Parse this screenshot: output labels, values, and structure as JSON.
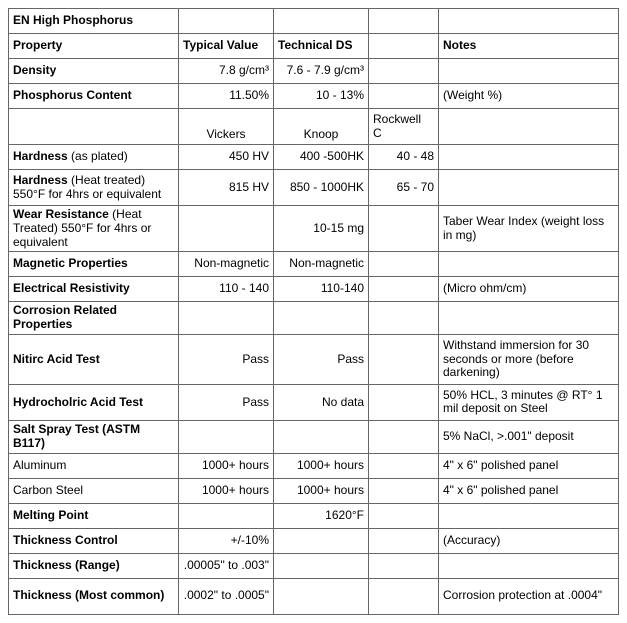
{
  "title": "EN High Phosphorus",
  "headers": {
    "property": "Property",
    "typical": "Typical Value",
    "technical": "Technical DS",
    "notes": "Notes"
  },
  "rows": {
    "density": {
      "label": "Density",
      "typ": "7.8 g/cm³",
      "tech": "7.6 - 7.9 g/cm³",
      "col4": "",
      "notes": ""
    },
    "phosphorus": {
      "label": "Phosphorus Content",
      "typ": "11.50%",
      "tech": "10 - 13%",
      "col4": "",
      "notes": "(Weight %)"
    },
    "hardness_header": {
      "label": "",
      "c2": "Vickers",
      "c3": "Knoop",
      "c4a": "Rockwell",
      "c4b": "C",
      "notes": ""
    },
    "hardness_plated": {
      "label_b": "Hardness",
      "label_rest": " (as plated)",
      "typ": "450 HV",
      "tech": "400 -500HK",
      "col4": "40 - 48",
      "notes": ""
    },
    "hardness_ht": {
      "label_b": "Hardness",
      "label_rest": " (Heat treated)  550°F for 4hrs or equivalent",
      "typ": "815 HV",
      "tech": "850 - 1000HK",
      "col4": "65 - 70",
      "notes": ""
    },
    "wear": {
      "label_b": "Wear Resistance",
      "label_rest": " (Heat Treated) 550°F for 4hrs or equivalent",
      "typ": "",
      "tech": "10-15 mg",
      "col4": "",
      "notes": "Taber Wear Index (weight loss in mg)"
    },
    "magnetic": {
      "label": "Magnetic Properties",
      "typ": "Non-magnetic",
      "tech": "Non-magnetic",
      "col4": "",
      "notes": ""
    },
    "resistivity": {
      "label": "Electrical Resistivity",
      "typ": "110 - 140",
      "tech": "110-140",
      "col4": "",
      "notes": "(Micro ohm/cm)"
    },
    "corrosion_hdr": {
      "label": "Corrosion Related Properties"
    },
    "nitric": {
      "label": "Nitirc Acid Test",
      "typ": "Pass",
      "tech": "Pass",
      "col4": "",
      "notes": "Withstand immersion for 30 seconds or more (before darkening)"
    },
    "hcl": {
      "label": "Hydrocholric Acid Test",
      "typ": "Pass",
      "tech": "No data",
      "col4": "",
      "notes": "50% HCL, 3 minutes @ RT° 1 mil deposit on Steel"
    },
    "salt": {
      "label": "Salt Spray Test (ASTM B117)",
      "typ": "",
      "tech": "",
      "col4": "",
      "notes": "5% NaCl, >.001\" deposit"
    },
    "aluminum": {
      "label": "Aluminum",
      "typ": "1000+ hours",
      "tech": "1000+ hours",
      "col4": "",
      "notes": "4\" x 6\" polished panel"
    },
    "carbon": {
      "label": "Carbon Steel",
      "typ": "1000+ hours",
      "tech": "1000+ hours",
      "col4": "",
      "notes": "4\" x 6\" polished panel"
    },
    "melting": {
      "label": "Melting Point",
      "typ": "",
      "tech": "1620°F",
      "col4": "",
      "notes": ""
    },
    "thk_ctrl": {
      "label": "Thickness Control",
      "typ": "+/-10%",
      "tech": "",
      "col4": "",
      "notes": "(Accuracy)"
    },
    "thk_range": {
      "label": "Thickness  (Range)",
      "typ": ".00005\" to .003\"",
      "tech": "",
      "col4": "",
      "notes": ""
    },
    "thk_common": {
      "label": "Thickness (Most common)",
      "typ": ".0002\" to .0005\"",
      "tech": "",
      "col4": "",
      "notes": "Corrosion protection at .0004\""
    }
  }
}
